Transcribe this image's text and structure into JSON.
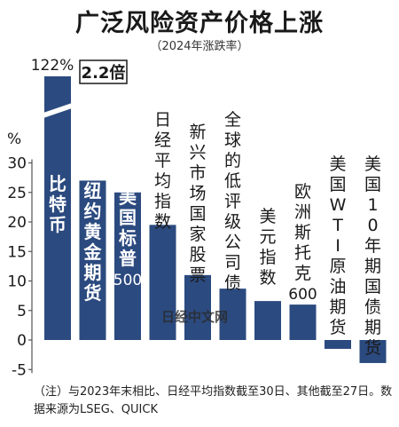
{
  "title": "广泛风险资产价格上涨",
  "subtitle": "（2024年涨跌率）",
  "note": "（注）与2023年末相比、日经平均指数截至30日、其他截至27日。数据来源为LSEG、QUICK",
  "watermark": "日经中文网",
  "colors": {
    "bar": "#2b4a7f",
    "axis": "#555555",
    "label": "#1a1a1a"
  },
  "chart_data": {
    "type": "bar",
    "title": "广泛风险资产价格上涨",
    "subtitle": "（2024年涨跌率）",
    "ylabel": "%",
    "ylim": [
      -5,
      30
    ],
    "yticks": [
      -5,
      0,
      5,
      10,
      15,
      20,
      25,
      30
    ],
    "axis_break": {
      "label": "2.2倍",
      "top_label": "122%"
    },
    "categories": [
      "比特币",
      "纽约黄金期货",
      "美国标普500",
      "日经平均指数",
      "新兴市场国家股票",
      "全球的低评级公司债",
      "美元指数",
      "欧洲斯托克600",
      "美国WTI原油期货",
      "美国10年期国债期货"
    ],
    "values": [
      122,
      27,
      25,
      19.5,
      11,
      8.7,
      6.6,
      6,
      -1.5,
      -3.9
    ]
  }
}
